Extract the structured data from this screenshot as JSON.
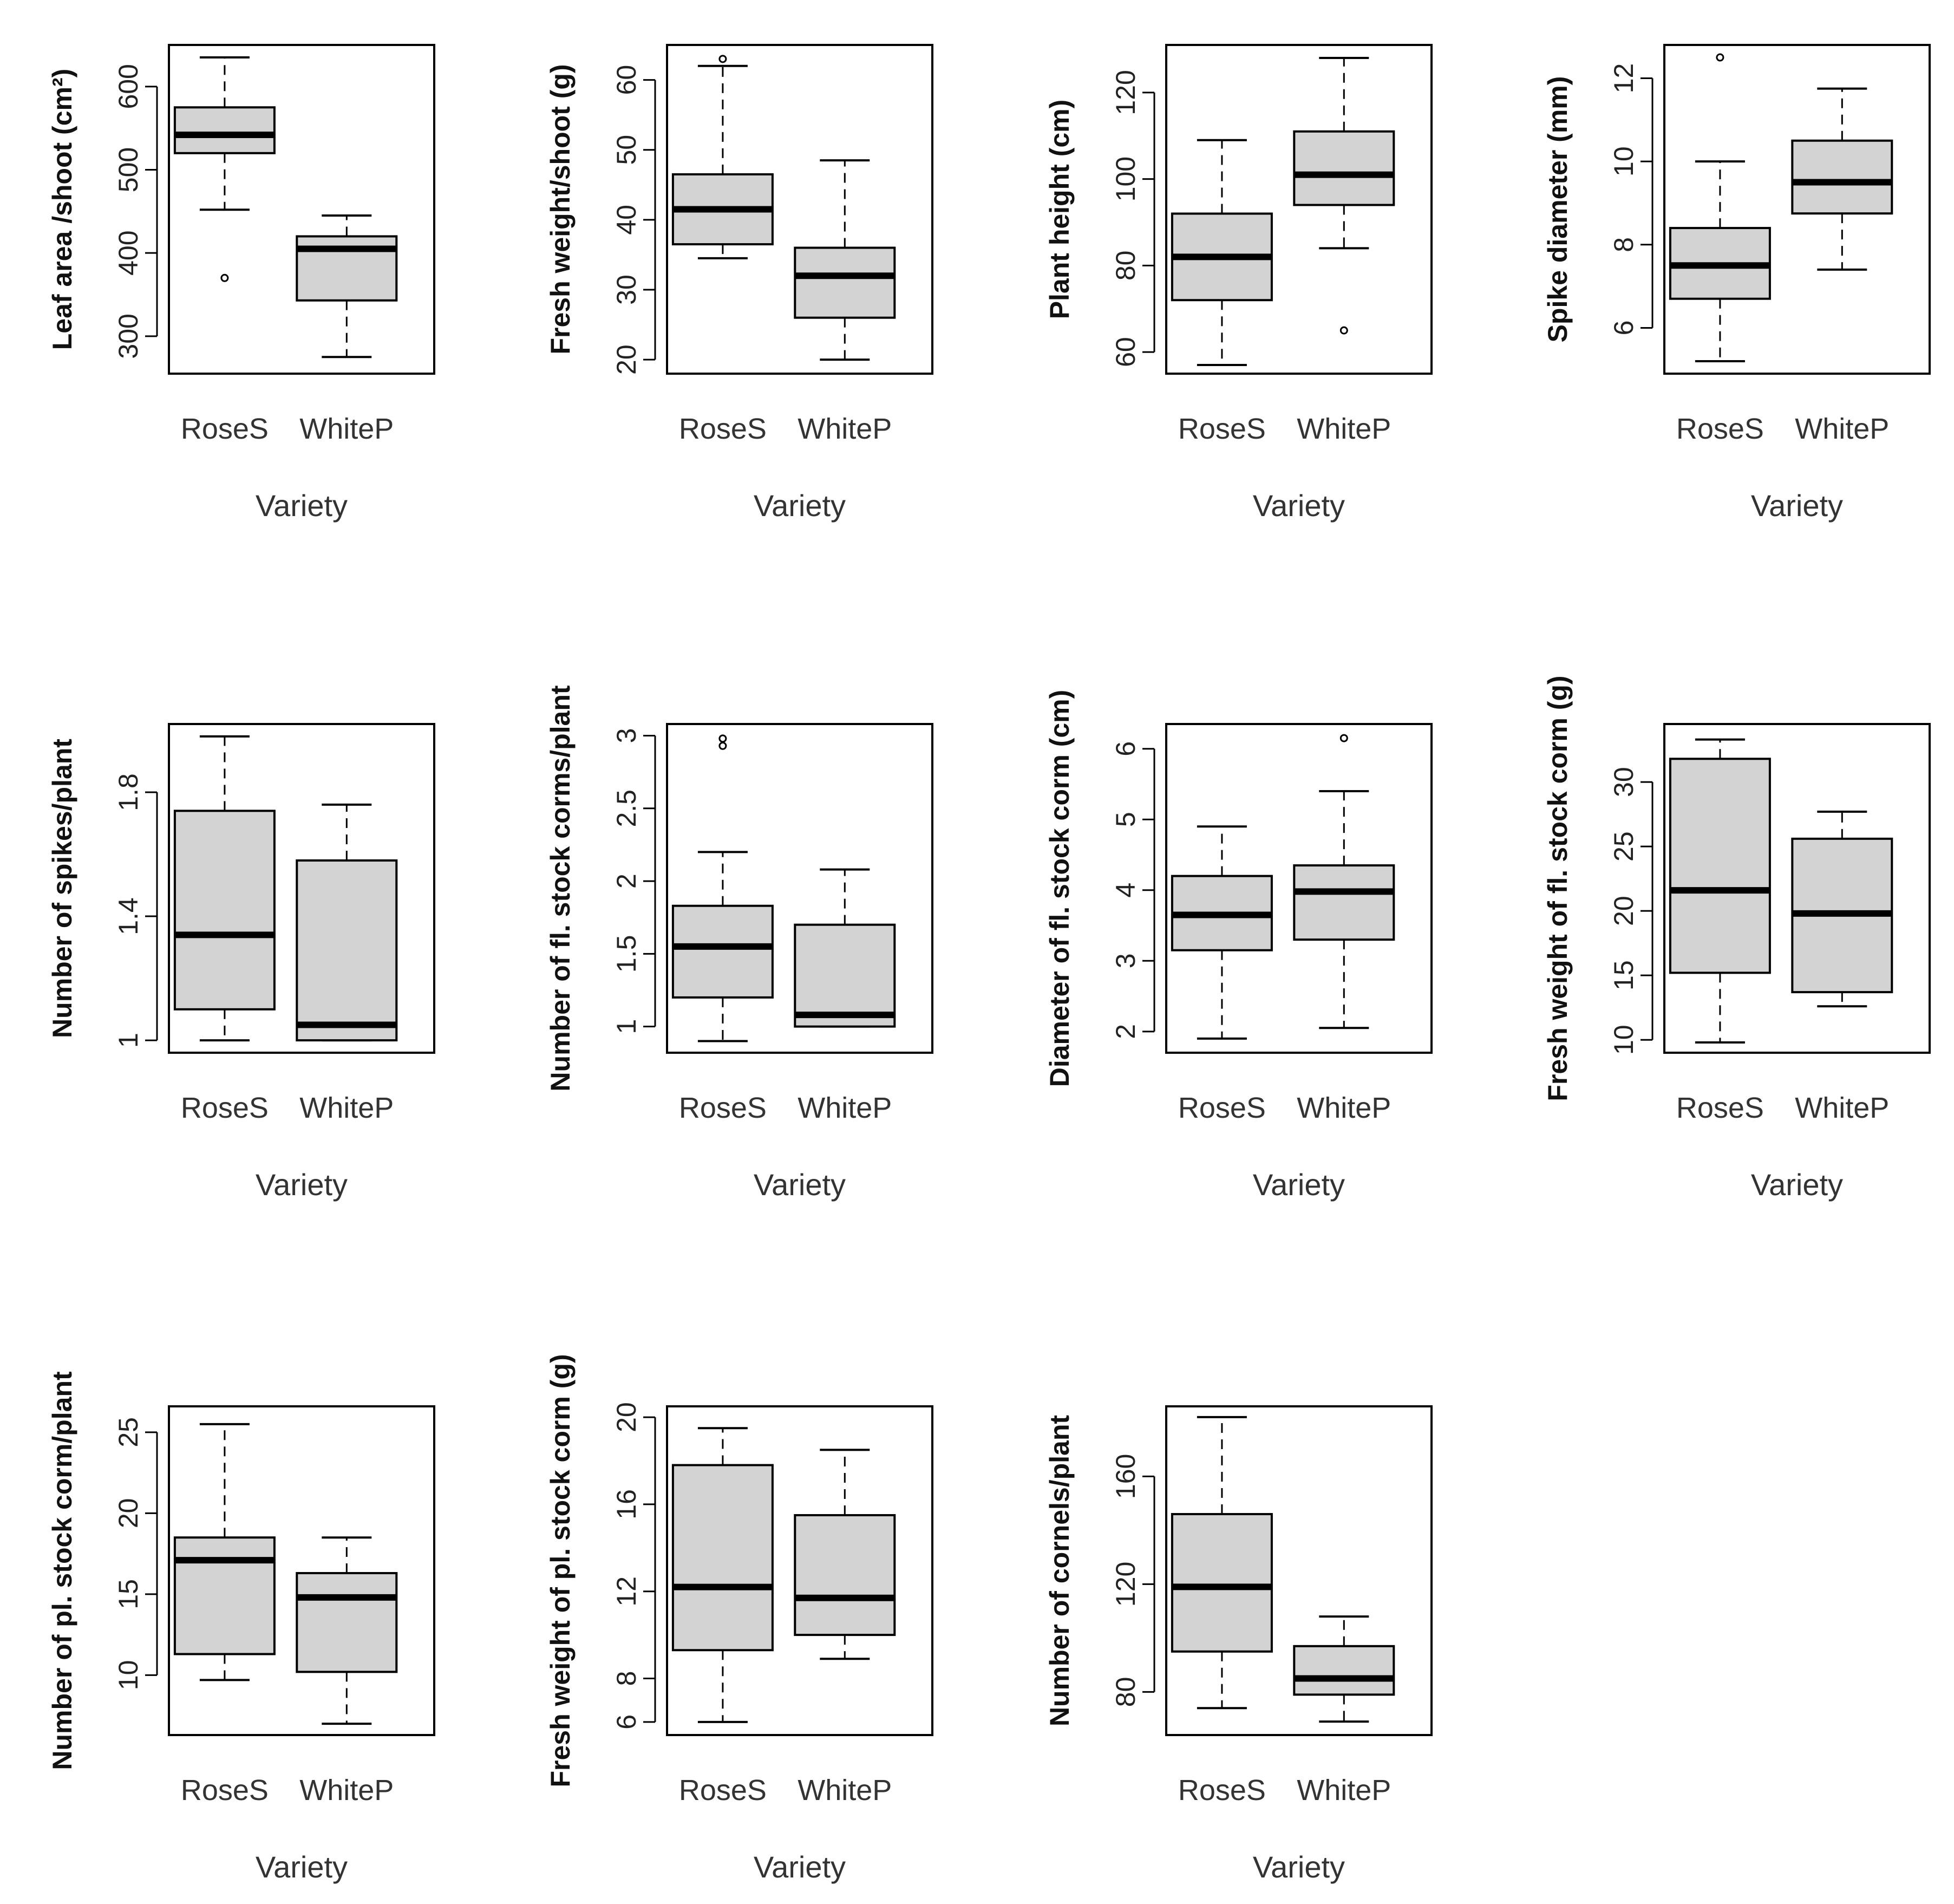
{
  "colors": {
    "box_fill": "#d3d3d3",
    "stroke": "#000000",
    "background": "#ffffff"
  },
  "chart_data": [
    {
      "type": "boxplot",
      "ylabel": "Leaf area /shoot (cm²)",
      "xlabel": "Variety",
      "categories": [
        "RoseS",
        "WhiteP"
      ],
      "ylim": [
        255,
        650
      ],
      "yticks": [
        300,
        400,
        500,
        600
      ],
      "series": [
        {
          "name": "RoseS",
          "min": 452,
          "q1": 520,
          "median": 542,
          "q3": 575,
          "max": 635,
          "outliers": [
            370
          ]
        },
        {
          "name": "WhiteP",
          "min": 275,
          "q1": 343,
          "median": 405,
          "q3": 420,
          "max": 445,
          "outliers": []
        }
      ]
    },
    {
      "type": "boxplot",
      "ylabel": "Fresh weight/shoot (g)",
      "xlabel": "Variety",
      "categories": [
        "RoseS",
        "WhiteP"
      ],
      "ylim": [
        18,
        65
      ],
      "yticks": [
        20,
        30,
        40,
        50,
        60
      ],
      "series": [
        {
          "name": "RoseS",
          "min": 34.5,
          "q1": 36.5,
          "median": 41.5,
          "q3": 46.5,
          "max": 62,
          "outliers": [
            63
          ]
        },
        {
          "name": "WhiteP",
          "min": 20,
          "q1": 26,
          "median": 32,
          "q3": 36,
          "max": 48.5,
          "outliers": []
        }
      ]
    },
    {
      "type": "boxplot",
      "ylabel": "Plant height (cm)",
      "xlabel": "Variety",
      "categories": [
        "RoseS",
        "WhiteP"
      ],
      "ylim": [
        55,
        131
      ],
      "yticks": [
        60,
        80,
        100,
        120
      ],
      "series": [
        {
          "name": "RoseS",
          "min": 57,
          "q1": 72,
          "median": 82,
          "q3": 92,
          "max": 109,
          "outliers": []
        },
        {
          "name": "WhiteP",
          "min": 84,
          "q1": 94,
          "median": 101,
          "q3": 111,
          "max": 128,
          "outliers": [
            65
          ]
        }
      ]
    },
    {
      "type": "boxplot",
      "ylabel": "Spike diameter (mm)",
      "xlabel": "Variety",
      "categories": [
        "RoseS",
        "WhiteP"
      ],
      "ylim": [
        4.9,
        12.8
      ],
      "yticks": [
        6,
        8,
        10,
        12
      ],
      "series": [
        {
          "name": "RoseS",
          "min": 5.2,
          "q1": 6.7,
          "median": 7.5,
          "q3": 8.4,
          "max": 10,
          "outliers": [
            12.5
          ]
        },
        {
          "name": "WhiteP",
          "min": 7.4,
          "q1": 8.75,
          "median": 9.5,
          "q3": 10.5,
          "max": 11.75,
          "outliers": []
        }
      ]
    },
    {
      "type": "boxplot",
      "ylabel": "Number of spikes/plant",
      "xlabel": "Variety",
      "categories": [
        "RoseS",
        "WhiteP"
      ],
      "ylim": [
        0.96,
        2.02
      ],
      "yticks": [
        1.0,
        1.4,
        1.8
      ],
      "series": [
        {
          "name": "RoseS",
          "min": 1.0,
          "q1": 1.1,
          "median": 1.34,
          "q3": 1.74,
          "max": 1.98,
          "outliers": []
        },
        {
          "name": "WhiteP",
          "min": 1.0,
          "q1": 1.0,
          "median": 1.05,
          "q3": 1.58,
          "max": 1.76,
          "outliers": []
        }
      ]
    },
    {
      "type": "boxplot",
      "ylabel": "Number of fl. stock corms/plant",
      "xlabel": "Variety",
      "categories": [
        "RoseS",
        "WhiteP"
      ],
      "ylim": [
        0.82,
        3.08
      ],
      "yticks": [
        1.0,
        1.5,
        2.0,
        2.5,
        3.0
      ],
      "series": [
        {
          "name": "RoseS",
          "min": 0.9,
          "q1": 1.2,
          "median": 1.55,
          "q3": 1.83,
          "max": 2.2,
          "outliers": [
            2.93,
            2.98
          ]
        },
        {
          "name": "WhiteP",
          "min": 1.0,
          "q1": 1.0,
          "median": 1.08,
          "q3": 1.7,
          "max": 2.08,
          "outliers": []
        }
      ]
    },
    {
      "type": "boxplot",
      "ylabel": "Diameter of fl. stock corm (cm)",
      "xlabel": "Variety",
      "categories": [
        "RoseS",
        "WhiteP"
      ],
      "ylim": [
        1.7,
        6.35
      ],
      "yticks": [
        2,
        3,
        4,
        5,
        6
      ],
      "series": [
        {
          "name": "RoseS",
          "min": 1.9,
          "q1": 3.15,
          "median": 3.65,
          "q3": 4.2,
          "max": 4.9,
          "outliers": []
        },
        {
          "name": "WhiteP",
          "min": 2.05,
          "q1": 3.3,
          "median": 3.98,
          "q3": 4.35,
          "max": 5.4,
          "outliers": [
            6.15
          ]
        }
      ]
    },
    {
      "type": "boxplot",
      "ylabel": "Fresh weight of fl. stock corm (g)",
      "xlabel": "Variety",
      "categories": [
        "RoseS",
        "WhiteP"
      ],
      "ylim": [
        9,
        34.5
      ],
      "yticks": [
        10,
        15,
        20,
        25,
        30
      ],
      "series": [
        {
          "name": "RoseS",
          "min": 9.8,
          "q1": 15.2,
          "median": 21.6,
          "q3": 31.8,
          "max": 33.3,
          "outliers": []
        },
        {
          "name": "WhiteP",
          "min": 12.6,
          "q1": 13.7,
          "median": 19.8,
          "q3": 25.6,
          "max": 27.7,
          "outliers": []
        }
      ]
    },
    {
      "type": "boxplot",
      "ylabel": "Number of pl. stock corm/plant",
      "xlabel": "Variety",
      "categories": [
        "RoseS",
        "WhiteP"
      ],
      "ylim": [
        6.3,
        26.6
      ],
      "yticks": [
        10,
        15,
        20,
        25
      ],
      "series": [
        {
          "name": "RoseS",
          "min": 9.7,
          "q1": 11.3,
          "median": 17.1,
          "q3": 18.5,
          "max": 25.5,
          "outliers": []
        },
        {
          "name": "WhiteP",
          "min": 7,
          "q1": 10.2,
          "median": 14.8,
          "q3": 16.3,
          "max": 18.5,
          "outliers": []
        }
      ]
    },
    {
      "type": "boxplot",
      "ylabel": "Fresh weight of pl. stock corm (g)",
      "xlabel": "Variety",
      "categories": [
        "RoseS",
        "WhiteP"
      ],
      "ylim": [
        5.4,
        20.5
      ],
      "yticks": [
        6,
        8,
        12,
        16,
        20
      ],
      "series": [
        {
          "name": "RoseS",
          "min": 6,
          "q1": 9.3,
          "median": 12.2,
          "q3": 17.8,
          "max": 19.5,
          "outliers": []
        },
        {
          "name": "WhiteP",
          "min": 8.9,
          "q1": 10,
          "median": 11.7,
          "q3": 15.5,
          "max": 18.5,
          "outliers": []
        }
      ]
    },
    {
      "type": "boxplot",
      "ylabel": "Number of cornels/plant",
      "xlabel": "Variety",
      "categories": [
        "RoseS",
        "WhiteP"
      ],
      "ylim": [
        64,
        186
      ],
      "yticks": [
        80,
        120,
        160
      ],
      "series": [
        {
          "name": "RoseS",
          "min": 74,
          "q1": 95,
          "median": 119,
          "q3": 146,
          "max": 182,
          "outliers": []
        },
        {
          "name": "WhiteP",
          "min": 69,
          "q1": 79,
          "median": 85,
          "q3": 97,
          "max": 108,
          "outliers": []
        }
      ]
    }
  ]
}
